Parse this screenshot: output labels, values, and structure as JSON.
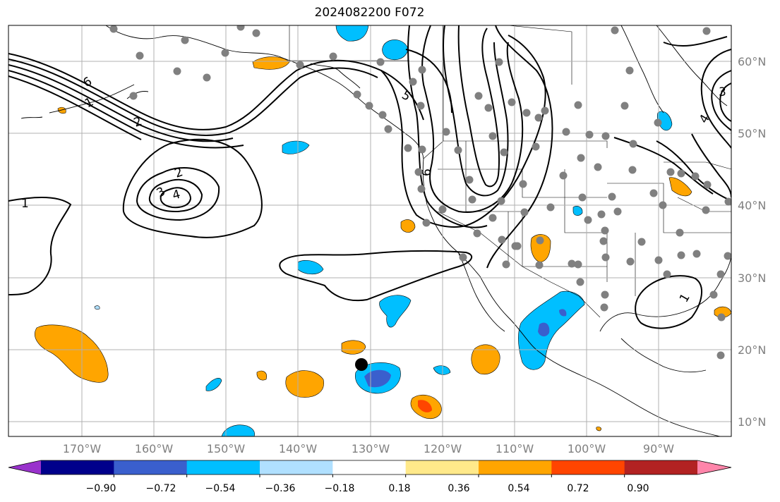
{
  "title": "2024082200 F072",
  "lat_labels": [
    "60°N",
    "50°N",
    "40°N",
    "30°N",
    "20°N",
    "10°N"
  ],
  "lon_labels": [
    "170°W",
    "160°W",
    "150°W",
    "140°W",
    "130°W",
    "120°W",
    "110°W",
    "100°W",
    "90°W"
  ],
  "colorbar": {
    "tick_labels": [
      "−0.90",
      "−0.72",
      "−0.54",
      "−0.36",
      "−0.18",
      "0.18",
      "0.36",
      "0.54",
      "0.72",
      "0.90"
    ],
    "colors": [
      "#9932cc",
      "#00008b",
      "#3a5fcd",
      "#00bfff",
      "#b0e0ff",
      "#ffffff",
      "#ffe98a",
      "#ffa500",
      "#ff4500",
      "#b22222",
      "#ff85aa"
    ]
  },
  "contour_labels": [
    "6",
    "2",
    "1",
    "2",
    "3",
    "4",
    "1",
    "5",
    "6",
    "3",
    "4",
    "1"
  ],
  "colors": {
    "station": "#808080",
    "grid": "#b0b0b0",
    "contour": "#000000"
  }
}
